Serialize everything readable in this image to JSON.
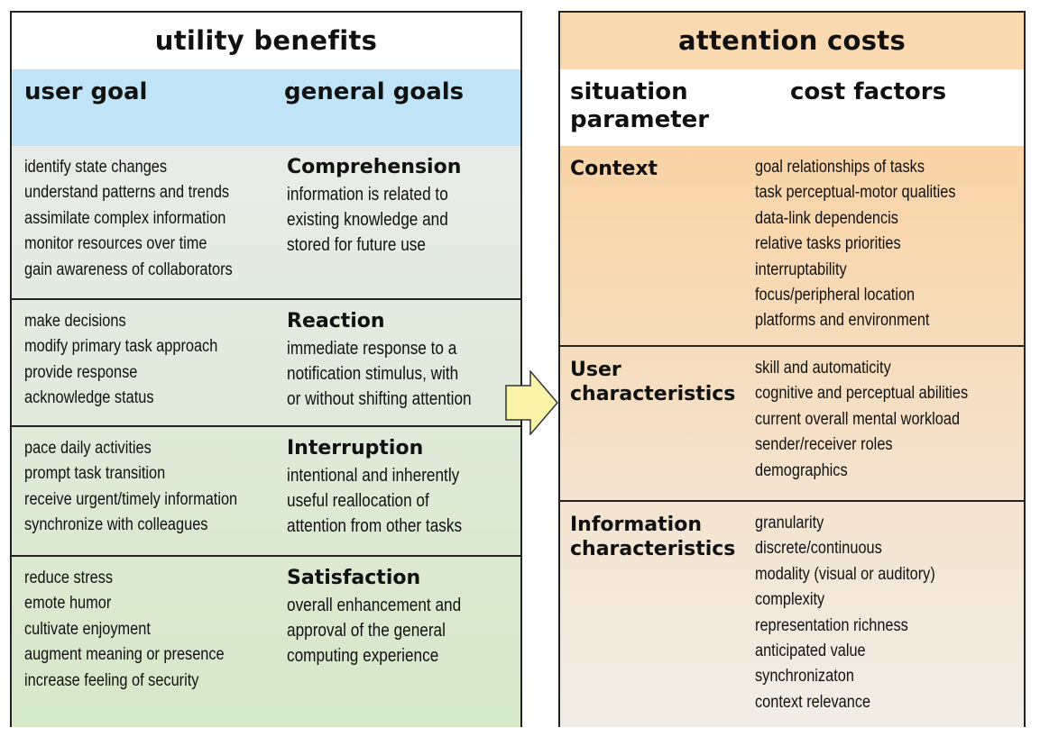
{
  "benefits": {
    "title": "utility benefits",
    "col_user_goal": "user goal",
    "col_general_goals": "general goals",
    "rows": [
      {
        "goals": [
          "identify state changes",
          "understand patterns and trends",
          "assimilate complex information",
          "monitor resources over time",
          "gain awareness of collaborators"
        ],
        "general_title": "Comprehension",
        "general_desc": [
          "information is related to",
          "existing knowledge and",
          "stored for future use"
        ]
      },
      {
        "goals": [
          "make decisions",
          "modify primary task approach",
          "provide response",
          "acknowledge status"
        ],
        "general_title": "Reaction",
        "general_desc": [
          "immediate response to a",
          "notification stimulus, with",
          "or without shifting attention"
        ]
      },
      {
        "goals": [
          "pace daily activities",
          "prompt task transition",
          "receive urgent/timely information",
          "synchronize with colleagues"
        ],
        "general_title": "Interruption",
        "general_desc": [
          "intentional and inherently",
          "useful reallocation of",
          "attention from other tasks"
        ]
      },
      {
        "goals": [
          "reduce stress",
          "emote humor",
          "cultivate enjoyment",
          "augment meaning or presence",
          "increase feeling of security"
        ],
        "general_title": "Satisfaction",
        "general_desc": [
          "overall enhancement and",
          "approval of the general",
          "computing experience"
        ]
      }
    ]
  },
  "costs": {
    "title": "attention costs",
    "col_situation": [
      "situation",
      "parameter"
    ],
    "col_cost_factors": "cost factors",
    "rows": [
      {
        "param": [
          "Context"
        ],
        "factors": [
          "goal relationships of tasks",
          "task perceptual-motor qualities",
          "data-link dependencis",
          "relative tasks priorities",
          "interruptability",
          "focus/peripheral location",
          "platforms and environment"
        ]
      },
      {
        "param": [
          "User",
          "characteristics"
        ],
        "factors": [
          "skill and automaticity",
          "cognitive and perceptual abilities",
          "current overall mental workload",
          "sender/receiver roles",
          "demographics"
        ]
      },
      {
        "param": [
          "Information",
          "characteristics"
        ],
        "factors": [
          "granularity",
          "discrete/continuous",
          "modality (visual or auditory)",
          "complexity",
          "representation richness",
          "anticipated value",
          "synchronizaton",
          "context relevance"
        ]
      }
    ]
  },
  "colors": {
    "title_bar_costs": "#fbd9b0",
    "header_benefits": "#bfe3f7",
    "arrow_fill": "#f9f4a8",
    "benefit_row_gradient": [
      "#e8ece8",
      "#d6e8c9"
    ],
    "cost_row_gradient": [
      "#f9d3a5",
      "#f1ede6"
    ]
  }
}
